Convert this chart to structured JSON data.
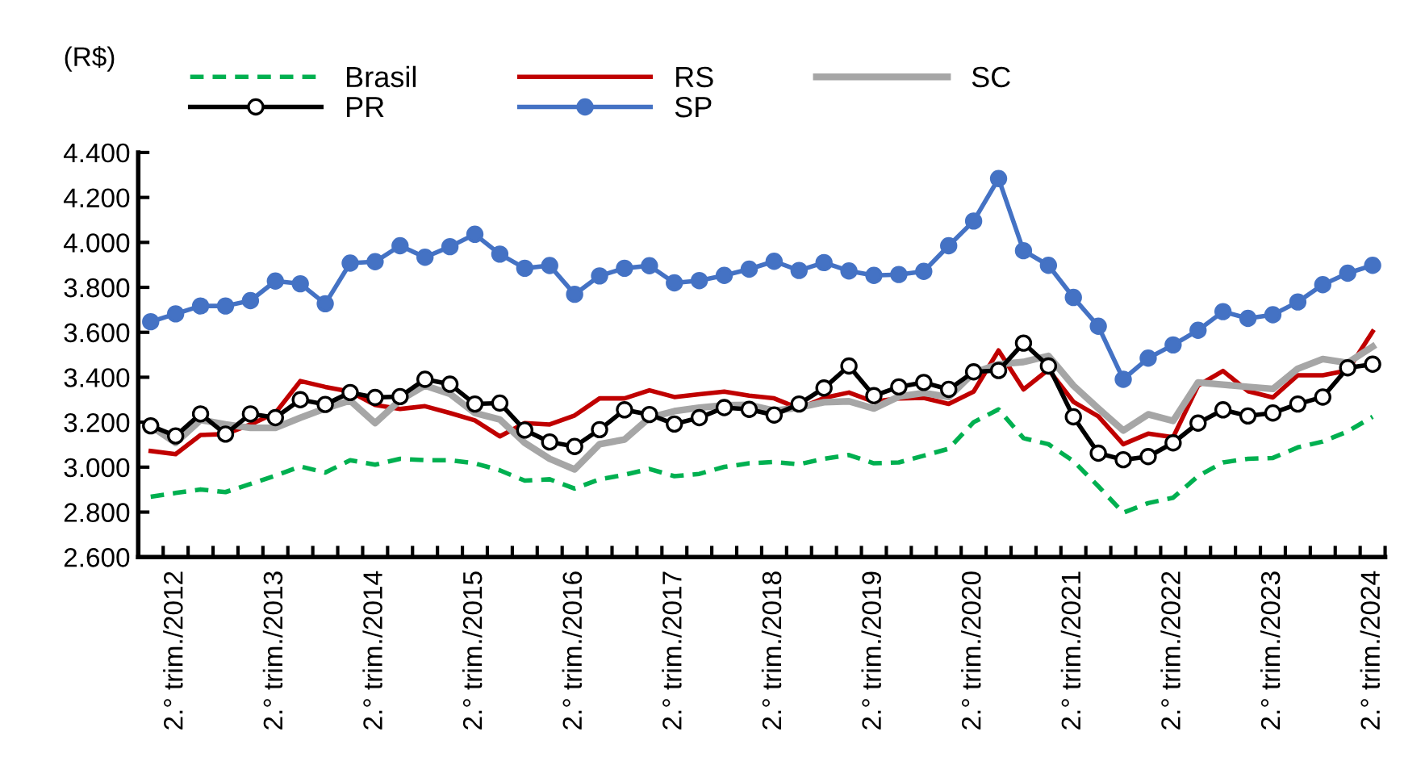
{
  "chart_data": {
    "type": "line",
    "ylabel": "(R$)",
    "categories": [
      null,
      "2.° trim./2012",
      null,
      null,
      null,
      "2.° trim./2013",
      null,
      null,
      null,
      "2.° trim./2014",
      null,
      null,
      null,
      "2.° trim./2015",
      null,
      null,
      null,
      "2.° trim./2016",
      null,
      null,
      null,
      "2.° trim./2017",
      null,
      null,
      null,
      "2.° trim./2018",
      null,
      null,
      null,
      "2.° trim./2019",
      null,
      null,
      null,
      "2.° trim./2020",
      null,
      null,
      null,
      "2.° trim./2021",
      null,
      null,
      null,
      "2.° trim./2022",
      null,
      null,
      null,
      "2.° trim./2023",
      null,
      null,
      null,
      "2.° trim./2024"
    ],
    "ylim": [
      2600,
      4400
    ],
    "yticks": [
      {
        "value": 2600,
        "label": "2.600"
      },
      {
        "value": 2800,
        "label": "2.800"
      },
      {
        "value": 3000,
        "label": "3.000"
      },
      {
        "value": 3200,
        "label": "3.200"
      },
      {
        "value": 3400,
        "label": "3.400"
      },
      {
        "value": 3600,
        "label": "3.600"
      },
      {
        "value": 3800,
        "label": "3.800"
      },
      {
        "value": 4000,
        "label": "4.000"
      },
      {
        "value": 4200,
        "label": "4.200"
      },
      {
        "value": 4400,
        "label": "4.400"
      }
    ],
    "grid": false,
    "legend": "top left",
    "series": [
      {
        "name": "Brasil",
        "color": "#00b050",
        "line_style": "dashed",
        "marker": "none",
        "values": [
          2868,
          2885,
          2901,
          2889,
          2925,
          2962,
          3003,
          2976,
          3031,
          3011,
          3037,
          3031,
          3031,
          3017,
          2986,
          2940,
          2946,
          2905,
          2946,
          2966,
          2992,
          2960,
          2970,
          3001,
          3017,
          3023,
          3013,
          3037,
          3054,
          3017,
          3021,
          3051,
          3082,
          3200,
          3257,
          3129,
          3102,
          3027,
          2915,
          2797,
          2840,
          2864,
          2960,
          3021,
          3037,
          3041,
          3088,
          3114,
          3159,
          3224
        ]
      },
      {
        "name": "RS",
        "color": "#c00000",
        "line_style": "solid",
        "marker": "none",
        "values": [
          3072,
          3058,
          3143,
          3147,
          3190,
          3241,
          3383,
          3357,
          3336,
          3277,
          3259,
          3271,
          3241,
          3208,
          3137,
          3196,
          3190,
          3230,
          3306,
          3306,
          3342,
          3312,
          3324,
          3336,
          3318,
          3306,
          3261,
          3308,
          3332,
          3291,
          3306,
          3308,
          3281,
          3336,
          3519,
          3346,
          3434,
          3291,
          3226,
          3102,
          3149,
          3133,
          3363,
          3428,
          3338,
          3310,
          3409,
          3409,
          3430,
          3603
        ]
      },
      {
        "name": "SC",
        "color": "#a6a6a6",
        "line_style": "solid",
        "marker": "none",
        "values": [
          3184,
          3108,
          3210,
          3190,
          3175,
          3175,
          3220,
          3261,
          3296,
          3196,
          3298,
          3363,
          3326,
          3241,
          3212,
          3108,
          3037,
          2990,
          3102,
          3123,
          3220,
          3249,
          3265,
          3275,
          3277,
          3251,
          3265,
          3289,
          3293,
          3261,
          3314,
          3330,
          3312,
          3420,
          3458,
          3468,
          3495,
          3363,
          3261,
          3163,
          3235,
          3206,
          3377,
          3367,
          3357,
          3348,
          3438,
          3481,
          3464,
          3536
        ]
      },
      {
        "name": "PR",
        "color": "#000000",
        "line_style": "solid",
        "marker": "circle",
        "values": [
          3184,
          3139,
          3237,
          3147,
          3237,
          3220,
          3300,
          3279,
          3332,
          3310,
          3314,
          3391,
          3369,
          3281,
          3285,
          3165,
          3112,
          3092,
          3167,
          3255,
          3234,
          3192,
          3220,
          3265,
          3257,
          3232,
          3281,
          3352,
          3450,
          3318,
          3357,
          3377,
          3346,
          3424,
          3430,
          3552,
          3450,
          3224,
          3062,
          3033,
          3047,
          3108,
          3196,
          3255,
          3228,
          3241,
          3281,
          3312,
          3442,
          3458
        ]
      },
      {
        "name": "SP",
        "color": "#4472c4",
        "line_style": "solid",
        "marker": "circle",
        "values": [
          3647,
          3682,
          3717,
          3717,
          3741,
          3828,
          3816,
          3727,
          3908,
          3914,
          3985,
          3934,
          3981,
          4036,
          3948,
          3885,
          3897,
          3769,
          3851,
          3885,
          3896,
          3820,
          3830,
          3853,
          3881,
          3916,
          3875,
          3910,
          3873,
          3853,
          3857,
          3871,
          3985,
          4095,
          4284,
          3963,
          3898,
          3755,
          3627,
          3391,
          3485,
          3544,
          3609,
          3692,
          3662,
          3678,
          3735,
          3812,
          3863,
          3898
        ]
      }
    ]
  }
}
